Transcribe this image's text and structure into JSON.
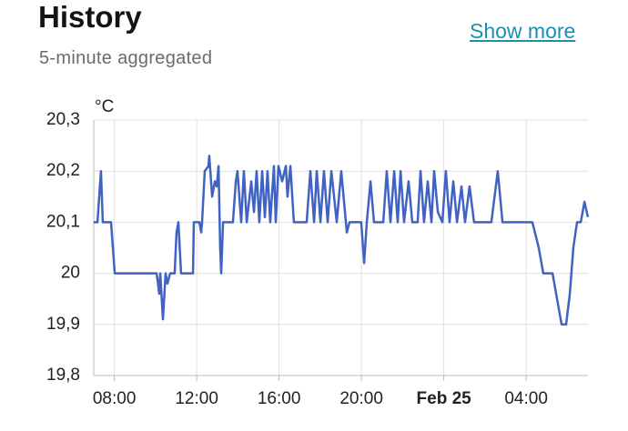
{
  "header": {
    "title": "History",
    "subtitle": "5-minute aggregated",
    "link": "Show more"
  },
  "chart_data": {
    "type": "line",
    "y_unit": "°C",
    "x": [
      7.0,
      7.18,
      7.35,
      7.44,
      7.84,
      7.93,
      8.02,
      10.05,
      10.09,
      10.18,
      10.23,
      10.36,
      10.49,
      10.58,
      10.71,
      10.93,
      11.02,
      11.11,
      11.24,
      11.82,
      11.86,
      12.13,
      12.22,
      12.26,
      12.39,
      12.57,
      12.61,
      12.75,
      12.88,
      12.97,
      13.06,
      13.14,
      13.19,
      13.28,
      13.76,
      13.9,
      13.98,
      14.16,
      14.29,
      14.43,
      14.65,
      14.78,
      14.91,
      15.04,
      15.18,
      15.31,
      15.44,
      15.57,
      15.75,
      15.84,
      15.97,
      16.15,
      16.33,
      16.41,
      16.55,
      16.72,
      17.34,
      17.52,
      17.7,
      17.83,
      18.01,
      18.18,
      18.36,
      18.54,
      18.8,
      19.02,
      19.29,
      19.42,
      19.99,
      20.13,
      20.26,
      20.44,
      20.61,
      21.06,
      21.23,
      21.41,
      21.59,
      21.76,
      21.9,
      22.07,
      22.29,
      22.47,
      22.73,
      22.87,
      23.04,
      23.22,
      23.4,
      23.53,
      23.71,
      23.93,
      24.1,
      24.28,
      24.46,
      24.64,
      24.86,
      25.03,
      25.25,
      25.47,
      26.31,
      26.62,
      26.85,
      28.3,
      28.61,
      28.83,
      29.28,
      29.5,
      29.72,
      29.94,
      30.12,
      30.29,
      30.47,
      30.65,
      30.83,
      31.0
    ],
    "series": [
      {
        "color": "#3f62c4",
        "values": [
          20.1,
          20.1,
          20.2,
          20.1,
          20.1,
          20.05,
          20.0,
          20.0,
          19.99,
          19.96,
          20.0,
          19.91,
          20.0,
          19.98,
          20.0,
          20.0,
          20.08,
          20.1,
          20.0,
          20.0,
          20.1,
          20.1,
          20.08,
          20.1,
          20.2,
          20.21,
          20.23,
          20.15,
          20.18,
          20.17,
          20.21,
          20.05,
          20.0,
          20.1,
          20.1,
          20.18,
          20.2,
          20.1,
          20.2,
          20.1,
          20.18,
          20.12,
          20.2,
          20.1,
          20.2,
          20.11,
          20.2,
          20.1,
          20.21,
          20.1,
          20.21,
          20.18,
          20.21,
          20.15,
          20.21,
          20.1,
          20.1,
          20.2,
          20.1,
          20.2,
          20.1,
          20.2,
          20.1,
          20.2,
          20.1,
          20.2,
          20.08,
          20.1,
          20.1,
          20.02,
          20.1,
          20.18,
          20.1,
          20.1,
          20.2,
          20.1,
          20.2,
          20.1,
          20.2,
          20.1,
          20.18,
          20.1,
          20.1,
          20.2,
          20.1,
          20.18,
          20.1,
          20.2,
          20.12,
          20.1,
          20.2,
          20.1,
          20.18,
          20.1,
          20.17,
          20.1,
          20.17,
          20.1,
          20.1,
          20.2,
          20.1,
          20.1,
          20.05,
          20.0,
          20.0,
          19.95,
          19.9,
          19.9,
          19.96,
          20.05,
          20.1,
          20.1,
          20.14,
          20.11
        ]
      }
    ],
    "xlim": [
      7,
      31
    ],
    "xticks": [
      {
        "value": 8,
        "label": "08:00"
      },
      {
        "value": 12,
        "label": "12:00"
      },
      {
        "value": 16,
        "label": "16:00"
      },
      {
        "value": 20,
        "label": "20:00"
      },
      {
        "value": 24,
        "label": "Feb 25"
      },
      {
        "value": 28,
        "label": "04:00"
      }
    ],
    "ylim": [
      19.8,
      20.3
    ],
    "yticks": [
      {
        "value": 19.8,
        "label": "19,8"
      },
      {
        "value": 19.9,
        "label": "19,9"
      },
      {
        "value": 20,
        "label": "20"
      },
      {
        "value": 20.1,
        "label": "20,1"
      },
      {
        "value": 20.2,
        "label": "20,2"
      },
      {
        "value": 20.3,
        "label": "20,3"
      }
    ],
    "grid": true
  }
}
